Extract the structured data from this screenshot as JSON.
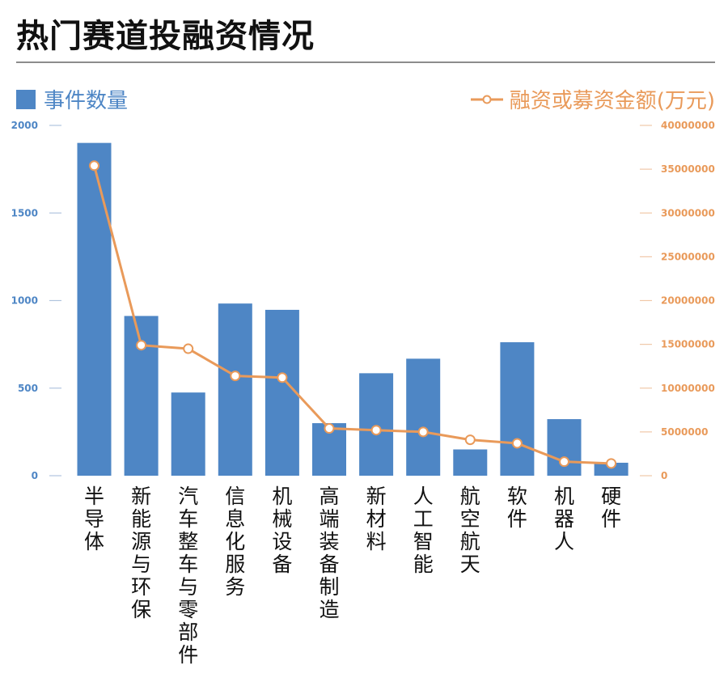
{
  "header": {
    "title": "热门赛道投融资情况"
  },
  "legend": {
    "bar_label": "事件数量",
    "line_label": "融资或募资金额(万元)"
  },
  "colors": {
    "bar": "#4e86c5",
    "line": "#e99a5a",
    "left_axis": "#4e86c5",
    "right_axis": "#e99a5a",
    "tick_mark": "#b0c4de",
    "right_tick_mark": "#f0c8a8"
  },
  "chart_data": {
    "type": "bar",
    "title": "热门赛道投融资情况",
    "xlabel": "",
    "ylabel": "事件数量",
    "y2label": "融资或募资金额(万元)",
    "categories": [
      "半导体",
      "新能源与环保",
      "汽车整车与零部件",
      "信息化服务",
      "机械设备",
      "高端装备制造",
      "新材料",
      "人工智能",
      "航空航天",
      "软件",
      "机器人",
      "硬件"
    ],
    "series": [
      {
        "name": "事件数量",
        "type": "bar",
        "axis": "left",
        "values": [
          1900,
          912,
          475,
          983,
          947,
          300,
          585,
          668,
          150,
          762,
          323,
          74
        ]
      },
      {
        "name": "融资或募资金额(万元)",
        "type": "line",
        "axis": "right",
        "values": [
          35400000,
          14900000,
          14500000,
          11400000,
          11200000,
          5400000,
          5200000,
          5000000,
          4100000,
          3700000,
          1600000,
          1400000
        ]
      }
    ],
    "ylim": [
      0,
      2000
    ],
    "y2lim": [
      0,
      40000000
    ],
    "yticks": [
      "0",
      "500",
      "1000",
      "1500",
      "2000"
    ],
    "y2ticks": [
      "0",
      "5000000",
      "10000000",
      "15000000",
      "20000000",
      "25000000",
      "30000000",
      "35000000",
      "40000000"
    ],
    "legend_position": "top",
    "grid": false
  }
}
